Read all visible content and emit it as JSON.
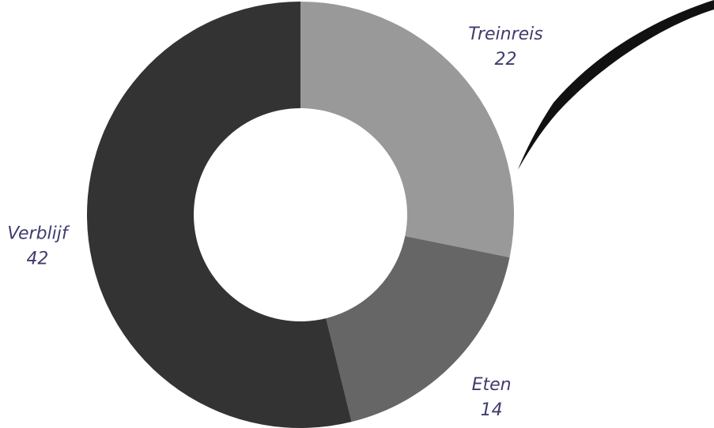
{
  "chart_data": {
    "type": "donut",
    "categories": [
      "Treinreis",
      "Eten",
      "Verblijf"
    ],
    "values": [
      22,
      14,
      42
    ],
    "colors": [
      "#999999",
      "#666666",
      "#333333"
    ]
  }
}
